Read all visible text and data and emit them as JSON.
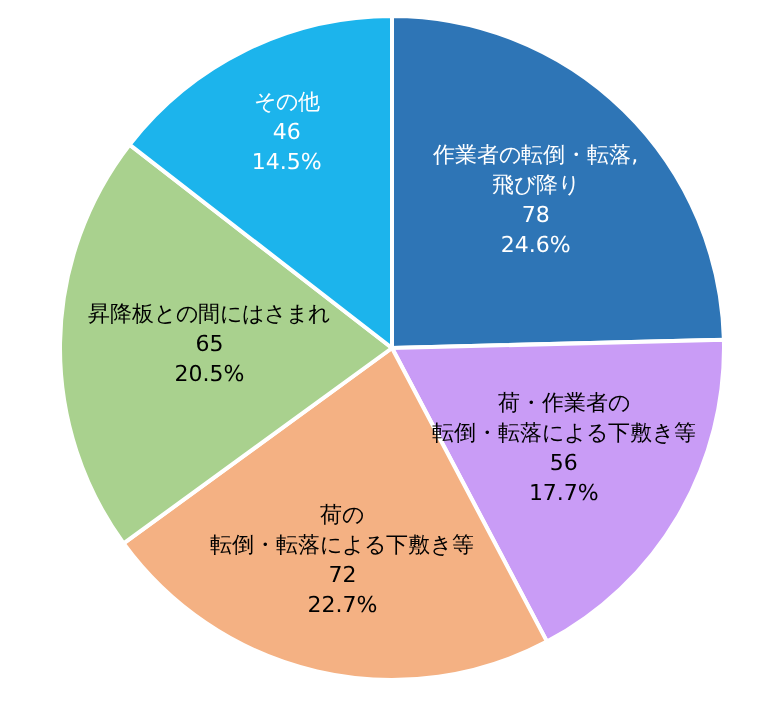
{
  "chart_data": {
    "type": "pie",
    "categories": [
      "作業者の転倒・転落,飛び降り",
      "荷・作業者の転倒・転落による下敷き等",
      "荷の転倒・転落による下敷き等",
      "昇降板との間にはさまれ",
      "その他"
    ],
    "values": [
      78,
      56,
      72,
      65,
      46
    ],
    "value_labels": [
      "78\n24.6%",
      "56\n17.7%",
      "72\n22.7%",
      "65\n20.5%",
      "46\n14.5%"
    ],
    "colors": [
      "#2e75b6",
      "#c99cf6",
      "#f4b183",
      "#a9d18e",
      "#1cb4ec"
    ]
  }
}
